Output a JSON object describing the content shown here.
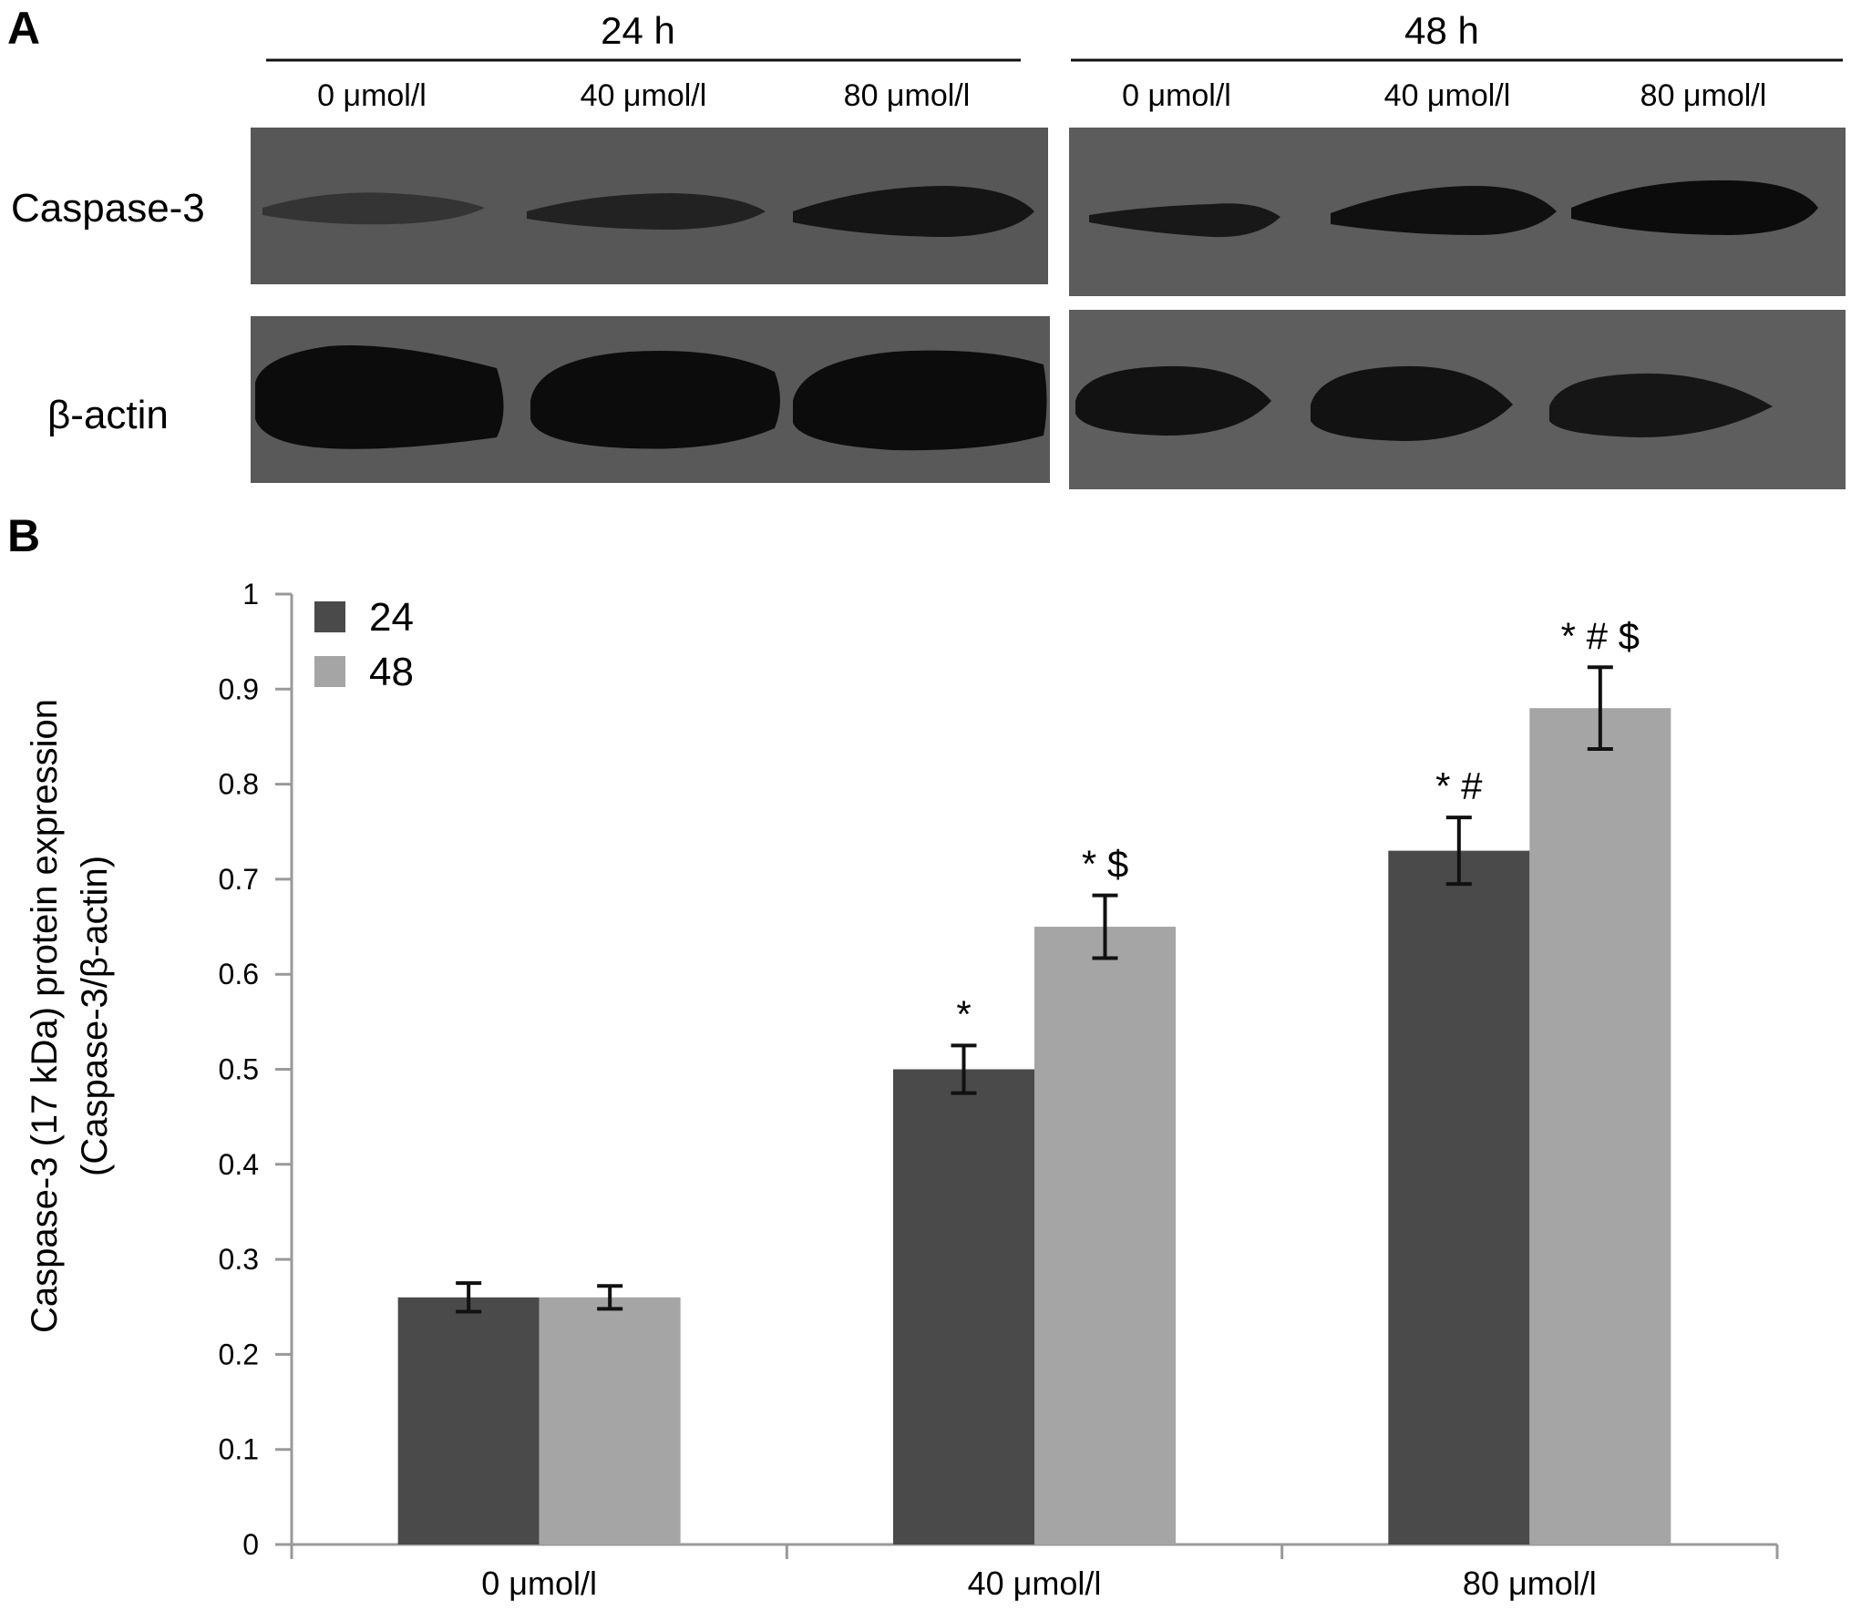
{
  "panel_a": {
    "letter": "A",
    "groups": [
      {
        "label": "24 h",
        "lanes": [
          "0 μmol/l",
          "40 μmol/l",
          "80 μmol/l"
        ]
      },
      {
        "label": "48 h",
        "lanes": [
          "0 μmol/l",
          "40 μmol/l",
          "80 μmol/l"
        ]
      }
    ],
    "rows": [
      {
        "label": "Caspase-3",
        "band_intensity": [
          [
            0.35,
            0.65,
            0.9
          ],
          [
            0.55,
            0.95,
            1.0
          ]
        ]
      },
      {
        "label": "β-actin",
        "band_intensity": [
          [
            1.0,
            1.0,
            1.0
          ],
          [
            0.95,
            0.95,
            0.9
          ]
        ]
      }
    ],
    "colors": {
      "membrane": "#5a5a5a",
      "band": "#0c0c0c"
    }
  },
  "panel_b": {
    "letter": "B"
  },
  "chart_data": {
    "type": "bar",
    "categories": [
      "0 μmol/l",
      "40 μmol/l",
      "80 μmol/l"
    ],
    "series": [
      {
        "name": "24",
        "color": "#4a4a4a",
        "values": [
          0.26,
          0.5,
          0.73
        ],
        "errors": [
          0.015,
          0.025,
          0.035
        ],
        "annotations": [
          "",
          "*",
          "* #"
        ]
      },
      {
        "name": "48",
        "color": "#a5a5a5",
        "values": [
          0.26,
          0.65,
          0.88
        ],
        "errors": [
          0.012,
          0.033,
          0.043
        ],
        "annotations": [
          "",
          "* $",
          "* # $"
        ]
      }
    ],
    "ylabel_lines": [
      "Caspase-3 (17 kDa) protein expression",
      "(Caspase-3/β-actin)"
    ],
    "xlabel": "",
    "ylim": [
      0,
      1
    ],
    "yticks": [
      "0",
      "0.1",
      "0.2",
      "0.3",
      "0.4",
      "0.5",
      "0.6",
      "0.7",
      "0.8",
      "0.9",
      "1"
    ],
    "grid": false,
    "legend_position": "top-left"
  }
}
